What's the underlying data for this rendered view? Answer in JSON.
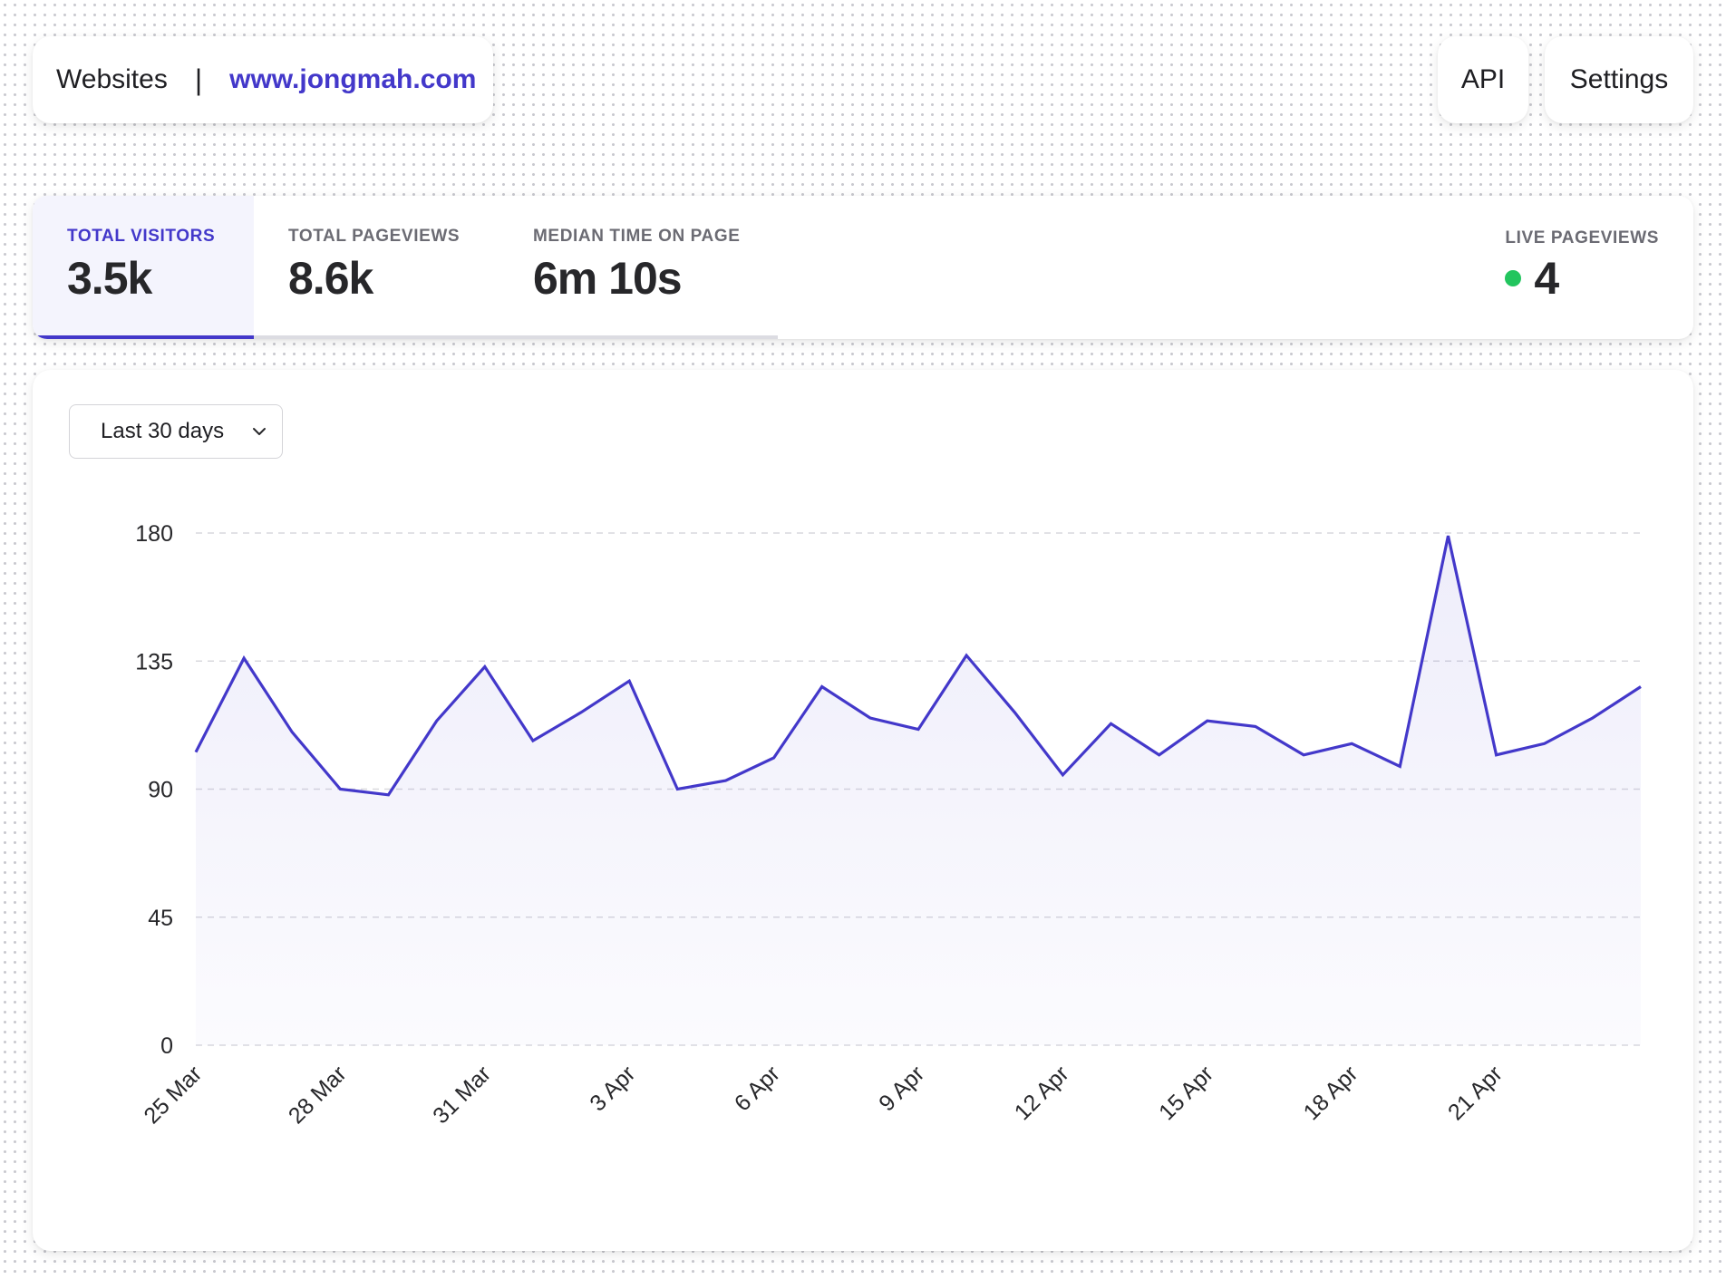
{
  "header": {
    "websites_label": "Websites",
    "separator": "|",
    "domain": "www.jongmah.com",
    "api_label": "API",
    "settings_label": "Settings"
  },
  "stats": {
    "visitors": {
      "label": "TOTAL VISITORS",
      "value": "3.5k"
    },
    "pageviews": {
      "label": "TOTAL PAGEVIEWS",
      "value": "8.6k"
    },
    "time_on_page": {
      "label": "MEDIAN TIME ON PAGE",
      "value": "6m 10s"
    },
    "live": {
      "label": "LIVE PAGEVIEWS",
      "value": "4"
    }
  },
  "filter": {
    "range": "Last 30 days"
  },
  "colors": {
    "accent": "#4338ca",
    "live_dot": "#22c55e"
  },
  "chart_data": {
    "type": "area",
    "x": [
      "25 Mar",
      "26 Mar",
      "27 Mar",
      "28 Mar",
      "29 Mar",
      "30 Mar",
      "31 Mar",
      "1 Apr",
      "2 Apr",
      "3 Apr",
      "4 Apr",
      "5 Apr",
      "6 Apr",
      "7 Apr",
      "8 Apr",
      "9 Apr",
      "10 Apr",
      "11 Apr",
      "12 Apr",
      "13 Apr",
      "14 Apr",
      "15 Apr",
      "16 Apr",
      "17 Apr",
      "18 Apr",
      "19 Apr",
      "20 Apr",
      "21 Apr",
      "22 Apr",
      "23 Apr",
      "24 Apr"
    ],
    "xticks": [
      "25 Mar",
      "28 Mar",
      "31 Mar",
      "3 Apr",
      "6 Apr",
      "9 Apr",
      "12 Apr",
      "15 Apr",
      "18 Apr",
      "21 Apr"
    ],
    "series": [
      {
        "values": [
          103,
          136,
          110,
          90,
          88,
          114,
          133,
          107,
          117,
          128,
          90,
          93,
          101,
          126,
          115,
          111,
          137,
          117,
          95,
          113,
          102,
          114,
          112,
          102,
          106,
          98,
          179,
          102,
          106,
          115,
          126
        ]
      }
    ],
    "yticks": [
      0,
      45,
      90,
      135,
      180
    ],
    "ylim": [
      0,
      180
    ],
    "grid": true
  }
}
